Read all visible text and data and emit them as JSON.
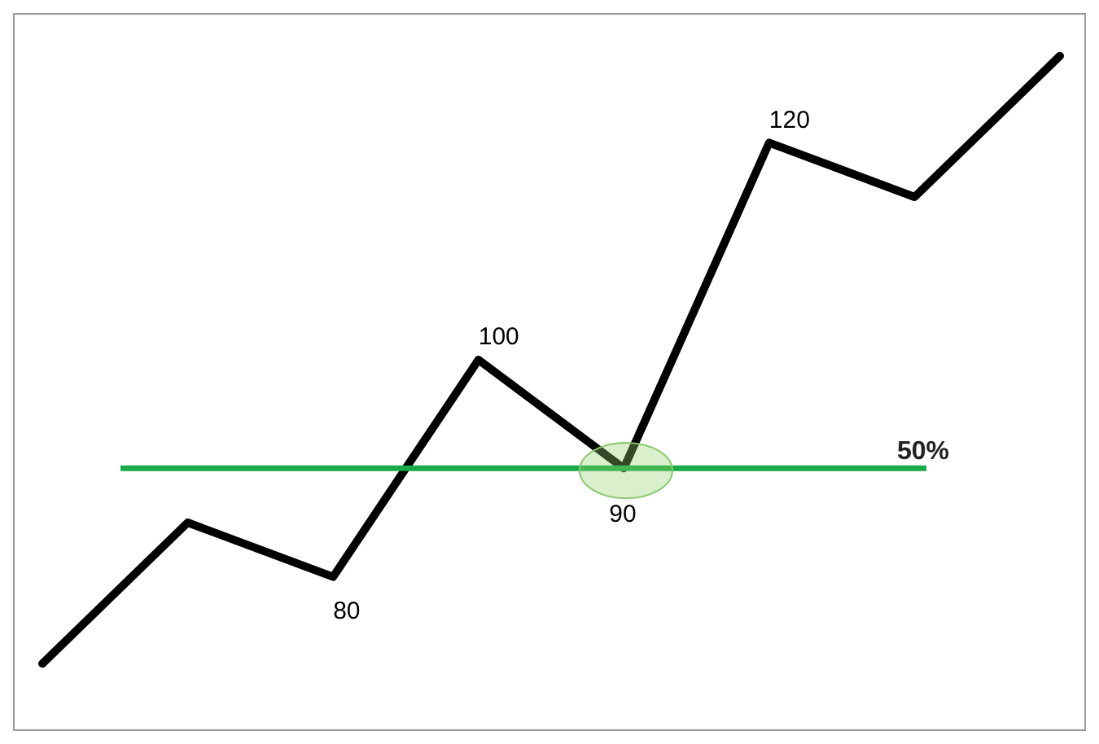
{
  "chart_data": {
    "type": "line",
    "categories": [
      null,
      null,
      null,
      null,
      null,
      null,
      null,
      null
    ],
    "series": [
      {
        "color": "#000000",
        "values": [
          72,
          85,
          80,
          100,
          90,
          120,
          115,
          128
        ],
        "value_labels": [
          null,
          null,
          "80",
          "100",
          "90",
          "120",
          null,
          null
        ]
      }
    ],
    "ref_lines": [
      {
        "axis": "y",
        "value": 90,
        "color": "#1aaa48"
      }
    ],
    "annotations": [
      {
        "text": "50%",
        "y": 90
      }
    ],
    "marker": "none",
    "line_style": "solid",
    "grid": false,
    "legend": false,
    "tick_labels": false
  }
}
